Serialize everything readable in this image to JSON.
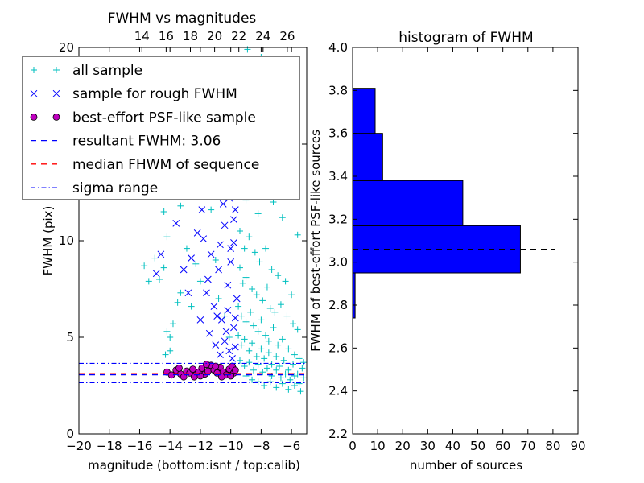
{
  "chart_data": [
    {
      "type": "scatter",
      "title": "FWHM vs magnitudes",
      "xlabel": "magnitude (bottom:isnt / top:calib)",
      "ylabel": "FWHM (pix)",
      "xlim": [
        -20,
        -5
      ],
      "ylim": [
        0,
        20
      ],
      "x_ticks": [
        -20,
        -18,
        -16,
        -14,
        -12,
        -10,
        -8,
        -6
      ],
      "x_tick_labels": [
        "−20",
        "−18",
        "−16",
        "−14",
        "−12",
        "−10",
        "−8",
        "−6"
      ],
      "y_ticks": [
        0,
        5,
        10,
        15,
        20
      ],
      "y_tick_labels": [
        "0",
        "5",
        "10",
        "",
        "20"
      ],
      "top_xlim": [
        8.8,
        27.6
      ],
      "top_ticks": [
        14,
        16,
        18,
        20,
        22,
        24,
        26
      ],
      "top_tick_labels": [
        "14",
        "16",
        "18",
        "20",
        "22",
        "24",
        "26"
      ],
      "colors": {
        "all": "#00bfbf",
        "rough": "#0000ff",
        "psf": "#bf00bf",
        "resultant": "#0000ff",
        "median": "#ff0000",
        "sigma": "#0000ff"
      },
      "resultant_fwhm": 3.06,
      "median_fwhm": 3.12,
      "sigma_range": [
        2.65,
        3.65
      ],
      "legend_position": "upper-left",
      "legend": [
        {
          "label": "all sample",
          "marker": "plus",
          "color": "#00bfbf"
        },
        {
          "label": "sample for rough FWHM",
          "marker": "cross",
          "color": "#0000ff"
        },
        {
          "label": "best-effort PSF-like sample",
          "marker": "circle",
          "color": "#bf00bf"
        },
        {
          "label": "resultant FWHM: 3.06",
          "marker": "dash",
          "color": "#0000ff"
        },
        {
          "label": "median FHWM of sequence",
          "marker": "dash",
          "color": "#ff0000"
        },
        {
          "label": "sigma range",
          "marker": "dashdot",
          "color": "#0000ff"
        }
      ],
      "series": [
        {
          "name": "all sample",
          "marker": "plus",
          "points": [
            [
              -15.7,
              8.7
            ],
            [
              -15.4,
              7.9
            ],
            [
              -15.0,
              9.1
            ],
            [
              -14.7,
              8.0
            ],
            [
              -14.4,
              8.6
            ],
            [
              -14.2,
              5.3
            ],
            [
              -14.0,
              5.0
            ],
            [
              -14.3,
              4.1
            ],
            [
              -14.0,
              4.3
            ],
            [
              -13.8,
              5.7
            ],
            [
              -13.5,
              6.8
            ],
            [
              -13.3,
              7.3
            ],
            [
              -14.0,
              12.4
            ],
            [
              -14.4,
              11.5
            ],
            [
              -14.2,
              10.2
            ],
            [
              -13.3,
              11.8
            ],
            [
              -12.9,
              9.6
            ],
            [
              -12.6,
              6.6
            ],
            [
              -12.3,
              8.8
            ],
            [
              -12.0,
              7.9
            ],
            [
              -11.6,
              12.8
            ],
            [
              -11.3,
              11.6
            ],
            [
              -11.0,
              9.0
            ],
            [
              -10.8,
              7.0
            ],
            [
              -10.4,
              6.1
            ],
            [
              -10.1,
              5.0
            ],
            [
              -10.2,
              13.2
            ],
            [
              -9.4,
              19.3
            ],
            [
              -8.9,
              19.9
            ],
            [
              -8.5,
              18.8
            ],
            [
              -8.0,
              19.5
            ],
            [
              -7.6,
              18.7
            ],
            [
              -9.2,
              16.8
            ],
            [
              -8.7,
              16.0
            ],
            [
              -8.1,
              17.3
            ],
            [
              -7.5,
              16.5
            ],
            [
              -7.0,
              14.5
            ],
            [
              -6.5,
              14.3
            ],
            [
              -9.3,
              13.0
            ],
            [
              -9.0,
              12.1
            ],
            [
              -8.5,
              12.8
            ],
            [
              -8.2,
              11.4
            ],
            [
              -7.9,
              13.5
            ],
            [
              -7.2,
              12.0
            ],
            [
              -6.6,
              11.2
            ],
            [
              -9.4,
              10.5
            ],
            [
              -9.1,
              9.6
            ],
            [
              -8.8,
              10.2
            ],
            [
              -8.4,
              9.4
            ],
            [
              -8.1,
              8.9
            ],
            [
              -7.7,
              9.6
            ],
            [
              -7.3,
              8.5
            ],
            [
              -6.9,
              8.2
            ],
            [
              -6.4,
              7.9
            ],
            [
              -6.0,
              7.2
            ],
            [
              -9.4,
              8.6
            ],
            [
              -9.2,
              7.8
            ],
            [
              -9.0,
              8.1
            ],
            [
              -8.6,
              7.5
            ],
            [
              -8.3,
              7.2
            ],
            [
              -7.9,
              6.9
            ],
            [
              -7.6,
              7.6
            ],
            [
              -7.4,
              6.5
            ],
            [
              -7.1,
              6.3
            ],
            [
              -6.7,
              6.7
            ],
            [
              -6.3,
              6.1
            ],
            [
              -5.9,
              5.7
            ],
            [
              -5.6,
              5.4
            ],
            [
              -9.5,
              6.6
            ],
            [
              -9.3,
              6.1
            ],
            [
              -9.0,
              5.8
            ],
            [
              -8.7,
              6.3
            ],
            [
              -8.5,
              5.6
            ],
            [
              -8.2,
              5.3
            ],
            [
              -8.0,
              5.9
            ],
            [
              -7.7,
              5.1
            ],
            [
              -7.5,
              4.8
            ],
            [
              -7.2,
              5.5
            ],
            [
              -6.9,
              4.6
            ],
            [
              -6.6,
              4.9
            ],
            [
              -6.2,
              4.4
            ],
            [
              -5.8,
              4.1
            ],
            [
              -5.5,
              3.9
            ],
            [
              -5.2,
              3.7
            ],
            [
              -9.5,
              5.1
            ],
            [
              -9.3,
              4.6
            ],
            [
              -9.1,
              4.9
            ],
            [
              -8.8,
              4.3
            ],
            [
              -8.6,
              4.7
            ],
            [
              -8.3,
              4.0
            ],
            [
              -8.0,
              4.4
            ],
            [
              -7.8,
              3.9
            ],
            [
              -7.5,
              4.2
            ],
            [
              -7.3,
              3.6
            ],
            [
              -7.0,
              4.0
            ],
            [
              -6.8,
              3.5
            ],
            [
              -6.5,
              3.8
            ],
            [
              -6.2,
              3.3
            ],
            [
              -5.9,
              3.6
            ],
            [
              -5.6,
              3.1
            ],
            [
              -5.3,
              3.4
            ],
            [
              -9.4,
              3.8
            ],
            [
              -9.1,
              3.5
            ],
            [
              -8.8,
              3.7
            ],
            [
              -8.5,
              3.3
            ],
            [
              -8.2,
              3.6
            ],
            [
              -7.9,
              3.2
            ],
            [
              -7.6,
              3.4
            ],
            [
              -7.3,
              3.0
            ],
            [
              -7.0,
              3.3
            ],
            [
              -6.7,
              2.9
            ],
            [
              -6.4,
              3.1
            ],
            [
              -6.1,
              2.8
            ],
            [
              -5.8,
              3.0
            ],
            [
              -5.5,
              2.6
            ],
            [
              -5.2,
              2.9
            ],
            [
              -9.0,
              3.0
            ],
            [
              -8.6,
              2.8
            ],
            [
              -8.2,
              2.7
            ],
            [
              -7.8,
              2.5
            ],
            [
              -7.4,
              2.7
            ],
            [
              -7.0,
              2.4
            ],
            [
              -6.6,
              2.6
            ],
            [
              -6.2,
              2.3
            ],
            [
              -5.8,
              2.5
            ],
            [
              -5.4,
              2.2
            ],
            [
              -8.4,
              15.2
            ],
            [
              -7.8,
              15.0
            ],
            [
              -6.9,
              13.3
            ],
            [
              -6.2,
              12.5
            ],
            [
              -5.6,
              10.3
            ]
          ]
        },
        {
          "name": "sample for rough FWHM",
          "marker": "cross",
          "points": [
            [
              -14.9,
              8.3
            ],
            [
              -14.6,
              9.3
            ],
            [
              -13.6,
              10.9
            ],
            [
              -13.1,
              8.5
            ],
            [
              -12.5,
              12.6
            ],
            [
              -12.2,
              10.4
            ],
            [
              -11.9,
              11.6
            ],
            [
              -11.6,
              7.3
            ],
            [
              -11.3,
              9.3
            ],
            [
              -11.1,
              6.6
            ],
            [
              -10.8,
              8.5
            ],
            [
              -10.6,
              5.9
            ],
            [
              -10.4,
              10.8
            ],
            [
              -10.2,
              6.4
            ],
            [
              -10.0,
              8.9
            ],
            [
              -9.8,
              5.5
            ],
            [
              -9.7,
              11.6
            ],
            [
              -9.6,
              7.0
            ],
            [
              -11.4,
              5.2
            ],
            [
              -11.0,
              4.6
            ],
            [
              -10.7,
              4.1
            ],
            [
              -10.4,
              4.8
            ],
            [
              -10.1,
              4.3
            ],
            [
              -9.9,
              3.9
            ],
            [
              -9.7,
              4.5
            ],
            [
              -10.5,
              11.9
            ],
            [
              -10.3,
              12.9
            ],
            [
              -10.1,
              12.2
            ],
            [
              -9.9,
              13.3
            ],
            [
              -9.8,
              11.1
            ],
            [
              -10.0,
              9.6
            ],
            [
              -10.7,
              9.8
            ],
            [
              -11.5,
              8.0
            ],
            [
              -12.8,
              7.3
            ],
            [
              -12.0,
              5.9
            ],
            [
              -9.8,
              9.9
            ],
            [
              -10.2,
              7.7
            ],
            [
              -10.9,
              6.1
            ],
            [
              -11.8,
              10.1
            ],
            [
              -12.6,
              9.1
            ],
            [
              -9.7,
              6.0
            ],
            [
              -10.3,
              5.3
            ]
          ]
        },
        {
          "name": "best-effort PSF-like sample",
          "marker": "circle",
          "points": [
            [
              -14.2,
              3.2
            ],
            [
              -13.9,
              3.05
            ],
            [
              -13.6,
              3.3
            ],
            [
              -13.3,
              3.1
            ],
            [
              -13.1,
              2.95
            ],
            [
              -12.9,
              3.25
            ],
            [
              -12.7,
              3.15
            ],
            [
              -12.5,
              3.35
            ],
            [
              -12.3,
              3.05
            ],
            [
              -12.1,
              3.2
            ],
            [
              -11.9,
              3.4
            ],
            [
              -11.7,
              3.1
            ],
            [
              -11.5,
              3.25
            ],
            [
              -11.3,
              3.55
            ],
            [
              -11.1,
              3.3
            ],
            [
              -10.9,
              3.15
            ],
            [
              -10.7,
              3.45
            ],
            [
              -10.5,
              3.2
            ],
            [
              -10.3,
              3.05
            ],
            [
              -10.1,
              3.35
            ],
            [
              -9.9,
              3.5
            ],
            [
              -9.8,
              3.15
            ],
            [
              -9.7,
              3.3
            ],
            [
              -11.6,
              3.6
            ],
            [
              -12.4,
              2.95
            ],
            [
              -13.4,
              3.4
            ],
            [
              -10.6,
              2.95
            ],
            [
              -11.0,
              3.5
            ],
            [
              -10.0,
              3.0
            ],
            [
              -12.0,
              3.0
            ]
          ]
        }
      ]
    },
    {
      "type": "bar",
      "orientation": "horizontal",
      "title": "histogram of FWHM",
      "xlabel": "number of sources",
      "ylabel": "FWHM of best-effort PSF-like sources",
      "xlim": [
        0,
        90
      ],
      "ylim": [
        2.2,
        4.0
      ],
      "x_ticks": [
        0,
        10,
        20,
        30,
        40,
        50,
        60,
        70,
        80,
        90
      ],
      "y_ticks": [
        2.2,
        2.4,
        2.6,
        2.8,
        3.0,
        3.2,
        3.4,
        3.6,
        3.8,
        4.0
      ],
      "y_tick_labels": [
        "2.2",
        "2.4",
        "2.6",
        "2.8",
        "3.0",
        "3.2",
        "3.4",
        "3.6",
        "3.8",
        "4.0"
      ],
      "bar_color": "#0000ff",
      "bins": [
        {
          "low": 2.74,
          "high": 2.95,
          "count": 1
        },
        {
          "low": 2.95,
          "high": 3.17,
          "count": 67
        },
        {
          "low": 3.17,
          "high": 3.38,
          "count": 44
        },
        {
          "low": 3.38,
          "high": 3.6,
          "count": 12
        },
        {
          "low": 3.6,
          "high": 3.81,
          "count": 9
        }
      ],
      "reference_line": {
        "value": 3.06,
        "x_range": [
          0,
          81
        ]
      }
    }
  ]
}
